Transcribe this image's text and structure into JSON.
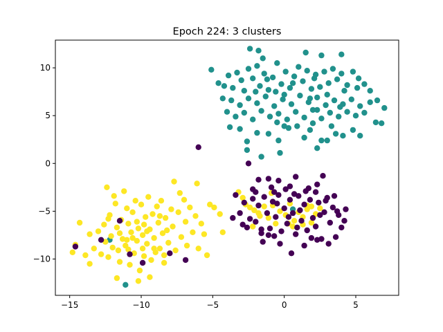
{
  "chart_data": {
    "type": "scatter",
    "title": "Epoch 224: 3 clusters",
    "xlabel": "",
    "ylabel": "",
    "xlim": [
      -16.0,
      8.0
    ],
    "ylim": [
      -13.8,
      12.9
    ],
    "xticks": [
      -15,
      -10,
      -5,
      0,
      5
    ],
    "yticks": [
      -10,
      -5,
      0,
      5,
      10
    ],
    "grid": false,
    "legend": "none",
    "series": [
      {
        "color": "#21918c",
        "points": [
          [
            -5.1,
            9.8
          ],
          [
            -4.6,
            8.4
          ],
          [
            -4.2,
            8.1
          ],
          [
            -3.9,
            9.2
          ],
          [
            -3.6,
            7.9
          ],
          [
            -3.3,
            9.5
          ],
          [
            -3.0,
            8.7
          ],
          [
            -2.8,
            7.6
          ],
          [
            -2.5,
            9.9
          ],
          [
            -2.2,
            8.9
          ],
          [
            -1.9,
            10.2
          ],
          [
            -1.7,
            8.1
          ],
          [
            -1.4,
            9.4
          ],
          [
            -1.1,
            7.7
          ],
          [
            -0.8,
            9.0
          ],
          [
            -0.5,
            10.5
          ],
          [
            -0.2,
            8.3
          ],
          [
            0.1,
            9.6
          ],
          [
            0.4,
            7.9
          ],
          [
            0.7,
            9.1
          ],
          [
            1.0,
            10.1
          ],
          [
            1.3,
            8.6
          ],
          [
            1.6,
            9.7
          ],
          [
            1.9,
            7.8
          ],
          [
            2.2,
            9.3
          ],
          [
            2.5,
            8.0
          ],
          [
            2.8,
            9.6
          ],
          [
            3.1,
            8.4
          ],
          [
            3.4,
            9.9
          ],
          [
            3.7,
            8.8
          ],
          [
            4.0,
            9.4
          ],
          [
            4.4,
            8.2
          ],
          [
            4.8,
            9.6
          ],
          [
            5.2,
            8.9
          ],
          [
            5.6,
            8.3
          ],
          [
            6.0,
            7.6
          ],
          [
            6.5,
            6.6
          ],
          [
            7.0,
            5.8
          ],
          [
            -2.4,
            12.0
          ],
          [
            -1.8,
            11.8
          ],
          [
            -1.5,
            11.0
          ],
          [
            1.5,
            11.6
          ],
          [
            2.6,
            11.3
          ],
          [
            4.0,
            11.4
          ],
          [
            -4.3,
            6.8
          ],
          [
            -4.0,
            5.4
          ],
          [
            -3.7,
            6.6
          ],
          [
            -3.4,
            4.9
          ],
          [
            -3.1,
            6.1
          ],
          [
            -2.8,
            5.3
          ],
          [
            -2.5,
            6.8
          ],
          [
            -2.2,
            4.6
          ],
          [
            -1.9,
            6.3
          ],
          [
            -1.6,
            5.5
          ],
          [
            -1.3,
            7.0
          ],
          [
            -1.0,
            4.9
          ],
          [
            -0.7,
            6.0
          ],
          [
            -0.4,
            5.2
          ],
          [
            -0.1,
            6.7
          ],
          [
            0.2,
            4.6
          ],
          [
            0.5,
            6.2
          ],
          [
            0.8,
            5.4
          ],
          [
            1.1,
            7.1
          ],
          [
            1.4,
            4.8
          ],
          [
            1.7,
            6.4
          ],
          [
            2.0,
            5.6
          ],
          [
            2.3,
            6.9
          ],
          [
            2.6,
            4.7
          ],
          [
            2.9,
            6.1
          ],
          [
            3.2,
            5.3
          ],
          [
            3.5,
            6.6
          ],
          [
            3.8,
            4.9
          ],
          [
            4.1,
            6.2
          ],
          [
            4.4,
            5.4
          ],
          [
            4.7,
            6.7
          ],
          [
            5.0,
            5.0
          ],
          [
            5.3,
            6.0
          ],
          [
            5.6,
            5.3
          ],
          [
            6.0,
            6.4
          ],
          [
            6.4,
            4.3
          ],
          [
            6.8,
            4.2
          ],
          [
            -3.8,
            3.8
          ],
          [
            -3.1,
            3.6
          ],
          [
            -2.6,
            2.3
          ],
          [
            -2.6,
            1.4
          ],
          [
            -1.9,
            3.2
          ],
          [
            -1.1,
            3.1
          ],
          [
            -0.4,
            2.4
          ],
          [
            -0.3,
            1.1
          ],
          [
            0.3,
            3.7
          ],
          [
            0.9,
            3.9
          ],
          [
            1.4,
            2.7
          ],
          [
            1.8,
            3.5
          ],
          [
            2.3,
            1.6
          ],
          [
            3.0,
            2.4
          ],
          [
            3.6,
            3.1
          ],
          [
            4.1,
            2.9
          ],
          [
            4.8,
            3.5
          ],
          [
            5.3,
            2.9
          ],
          [
            -0.5,
            4.3
          ],
          [
            0.0,
            3.9
          ],
          [
            2.0,
            4.2
          ],
          [
            -1.6,
            0.7
          ],
          [
            2.6,
            2.4
          ],
          [
            3.3,
            3.9
          ],
          [
            -0.6,
            7.5
          ],
          [
            0.6,
            8.4
          ],
          [
            1.8,
            6.8
          ],
          [
            3.0,
            7.2
          ],
          [
            -1.2,
            8.8
          ],
          [
            0.0,
            7.2
          ],
          [
            2.1,
            8.9
          ],
          [
            4.2,
            7.6
          ],
          [
            5.1,
            7.9
          ],
          [
            -2.0,
            7.5
          ],
          [
            2.3,
            5.6
          ],
          [
            3.9,
            5.9
          ],
          [
            -12.2,
            -8.0
          ],
          [
            -11.1,
            -12.7
          ],
          [
            0.6,
            -4.8
          ]
        ]
      },
      {
        "color": "#fde725",
        "points": [
          [
            -14.8,
            -9.3
          ],
          [
            -14.6,
            -8.5
          ],
          [
            -14.3,
            -6.2
          ],
          [
            -13.9,
            -9.6
          ],
          [
            -13.6,
            -7.4
          ],
          [
            -13.3,
            -8.9
          ],
          [
            -13.0,
            -7.1
          ],
          [
            -12.8,
            -9.5
          ],
          [
            -12.6,
            -6.4
          ],
          [
            -12.5,
            -8.2
          ],
          [
            -12.3,
            -9.8
          ],
          [
            -12.2,
            -5.4
          ],
          [
            -12.1,
            -7.6
          ],
          [
            -12.0,
            -8.8
          ],
          [
            -11.8,
            -4.2
          ],
          [
            -11.7,
            -6.7
          ],
          [
            -11.6,
            -9.1
          ],
          [
            -11.5,
            -10.3
          ],
          [
            -11.4,
            -5.9
          ],
          [
            -11.3,
            -7.9
          ],
          [
            -11.2,
            -2.9
          ],
          [
            -11.1,
            -8.6
          ],
          [
            -11.0,
            -4.7
          ],
          [
            -10.9,
            -6.3
          ],
          [
            -10.8,
            -10.6
          ],
          [
            -10.7,
            -7.2
          ],
          [
            -10.6,
            -5.1
          ],
          [
            -10.5,
            -9.4
          ],
          [
            -10.4,
            -3.9
          ],
          [
            -10.3,
            -8.1
          ],
          [
            -10.2,
            -6.8
          ],
          [
            -10.1,
            -11.2
          ],
          [
            -10.0,
            -4.3
          ],
          [
            -9.9,
            -7.5
          ],
          [
            -9.8,
            -9.7
          ],
          [
            -9.7,
            -5.6
          ],
          [
            -9.6,
            -8.4
          ],
          [
            -9.5,
            -3.5
          ],
          [
            -9.4,
            -6.9
          ],
          [
            -9.3,
            -10.1
          ],
          [
            -9.2,
            -5.3
          ],
          [
            -9.1,
            -7.8
          ],
          [
            -9.0,
            -9.3
          ],
          [
            -8.9,
            -4.5
          ],
          [
            -8.8,
            -6.2
          ],
          [
            -8.7,
            -8.9
          ],
          [
            -8.6,
            -3.9
          ],
          [
            -8.5,
            -7.3
          ],
          [
            -8.4,
            -10.4
          ],
          [
            -8.3,
            -5.7
          ],
          [
            -8.1,
            -8.3
          ],
          [
            -7.9,
            -4.8
          ],
          [
            -7.8,
            -6.6
          ],
          [
            -7.6,
            -9.1
          ],
          [
            -7.4,
            -5.1
          ],
          [
            -7.2,
            -7.7
          ],
          [
            -7.0,
            -3.8
          ],
          [
            -6.9,
            -6.1
          ],
          [
            -6.8,
            -8.6
          ],
          [
            -6.6,
            -4.6
          ],
          [
            -6.4,
            -7.2
          ],
          [
            -6.2,
            -5.5
          ],
          [
            -6.0,
            -8.9
          ],
          [
            -5.8,
            -6.3
          ],
          [
            -5.6,
            -7.4
          ],
          [
            -5.4,
            -9.6
          ],
          [
            -5.2,
            -4.3
          ],
          [
            -4.9,
            -4.6
          ],
          [
            -4.5,
            -5.3
          ],
          [
            -4.3,
            -7.2
          ],
          [
            -12.4,
            -2.5
          ],
          [
            -11.9,
            -3.4
          ],
          [
            -7.7,
            -1.9
          ],
          [
            -7.3,
            -3.1
          ],
          [
            -6.1,
            -2.1
          ],
          [
            -9.4,
            -11.9
          ],
          [
            -11.7,
            -12.0
          ],
          [
            -10.2,
            -12.3
          ],
          [
            -13.6,
            -10.5
          ],
          [
            -12.3,
            -5.8
          ],
          [
            -11.5,
            -7.3
          ],
          [
            -10.6,
            -7.8
          ],
          [
            -9.8,
            -6.4
          ],
          [
            -9.1,
            -8.9
          ],
          [
            -8.2,
            -7.0
          ],
          [
            -10.9,
            -9.0
          ],
          [
            -9.6,
            -7.1
          ],
          [
            -8.7,
            -5.5
          ],
          [
            -10.3,
            -6.1
          ],
          [
            -11.0,
            -8.0
          ],
          [
            -9.9,
            -8.9
          ],
          [
            -8.4,
            -9.6
          ],
          [
            -2.7,
            -4.3
          ],
          [
            -2.4,
            -4.6
          ],
          [
            -2.1,
            -4.9
          ],
          [
            -1.8,
            -5.2
          ],
          [
            -1.4,
            -4.5
          ],
          [
            -1.1,
            -5.7
          ],
          [
            -0.8,
            -4.4
          ],
          [
            -0.6,
            -6.3
          ],
          [
            -0.3,
            -5.0
          ],
          [
            0.1,
            -5.4
          ],
          [
            0.4,
            -4.2
          ],
          [
            0.7,
            -6.0
          ],
          [
            1.0,
            -5.1
          ],
          [
            1.3,
            -5.6
          ],
          [
            1.6,
            -4.4
          ],
          [
            1.9,
            -6.2
          ],
          [
            2.2,
            -5.3
          ],
          [
            2.5,
            -4.7
          ],
          [
            -2.2,
            -6.6
          ],
          [
            0.6,
            -6.6
          ],
          [
            1.3,
            -6.4
          ],
          [
            -3.2,
            -3.0
          ],
          [
            -0.9,
            -3.1
          ],
          [
            1.6,
            -4.8
          ],
          [
            -2.9,
            -3.6
          ],
          [
            0.3,
            -6.3
          ],
          [
            1.9,
            -4.5
          ],
          [
            -1.7,
            -5.5
          ]
        ]
      },
      {
        "color": "#440154",
        "points": [
          [
            -6.0,
            1.7
          ],
          [
            -12.8,
            -8.0
          ],
          [
            -14.6,
            -8.7
          ],
          [
            -11.5,
            -6.0
          ],
          [
            -10.8,
            -9.5
          ],
          [
            -9.9,
            -10.4
          ],
          [
            -8.0,
            -9.4
          ],
          [
            -6.9,
            -10.1
          ],
          [
            -2.5,
            0.0
          ],
          [
            -2.2,
            -2.7
          ],
          [
            -1.8,
            -1.7
          ],
          [
            -1.1,
            -1.6
          ],
          [
            -0.7,
            -3.0
          ],
          [
            -0.4,
            -1.8
          ],
          [
            0.4,
            -2.4
          ],
          [
            0.8,
            -1.4
          ],
          [
            1.5,
            -2.9
          ],
          [
            2.3,
            -2.2
          ],
          [
            2.7,
            -1.3
          ],
          [
            -3.4,
            -3.3
          ],
          [
            -3.1,
            -5.2
          ],
          [
            -2.8,
            -4.1
          ],
          [
            -2.6,
            -6.7
          ],
          [
            -2.4,
            -5.8
          ],
          [
            -2.2,
            -3.7
          ],
          [
            -2.0,
            -6.1
          ],
          [
            -1.8,
            -4.4
          ],
          [
            -1.6,
            -7.3
          ],
          [
            -1.4,
            -3.5
          ],
          [
            -1.2,
            -5.2
          ],
          [
            -1.0,
            -6.8
          ],
          [
            -0.8,
            -4.0
          ],
          [
            -0.6,
            -5.6
          ],
          [
            -0.4,
            -3.3
          ],
          [
            -0.2,
            -7.1
          ],
          [
            0.0,
            -4.7
          ],
          [
            0.2,
            -6.3
          ],
          [
            0.4,
            -3.8
          ],
          [
            0.6,
            -5.2
          ],
          [
            0.8,
            -7.4
          ],
          [
            1.0,
            -3.4
          ],
          [
            1.2,
            -6.0
          ],
          [
            1.4,
            -4.3
          ],
          [
            1.6,
            -7.0
          ],
          [
            1.8,
            -3.8
          ],
          [
            2.0,
            -5.7
          ],
          [
            2.2,
            -6.6
          ],
          [
            2.4,
            -4.1
          ],
          [
            2.6,
            -7.9
          ],
          [
            2.8,
            -5.1
          ],
          [
            3.0,
            -3.6
          ],
          [
            3.2,
            -6.2
          ],
          [
            3.4,
            -4.6
          ],
          [
            3.6,
            -7.7
          ],
          [
            3.8,
            -5.4
          ],
          [
            4.0,
            -6.7
          ],
          [
            4.3,
            -4.8
          ],
          [
            -3.6,
            -5.7
          ],
          [
            -1.5,
            -8.2
          ],
          [
            -0.3,
            -8.4
          ],
          [
            0.5,
            -9.4
          ],
          [
            1.4,
            -8.6
          ],
          [
            2.3,
            -8.0
          ],
          [
            3.1,
            -8.4
          ],
          [
            -0.9,
            -2.5
          ],
          [
            0.1,
            -2.7
          ],
          [
            1.7,
            -2.6
          ],
          [
            2.9,
            -3.9
          ],
          [
            -2.0,
            -3.0
          ],
          [
            0.9,
            -6.7
          ],
          [
            -1.1,
            -7.5
          ],
          [
            2.5,
            -5.4
          ],
          [
            1.1,
            -4.9
          ],
          [
            -0.5,
            -4.2
          ],
          [
            0.3,
            -5.6
          ],
          [
            3.5,
            -3.4
          ],
          [
            -2.9,
            -6.4
          ],
          [
            1.9,
            -7.8
          ],
          [
            0.7,
            -3.2
          ],
          [
            4.2,
            -6.0
          ],
          [
            -1.6,
            -6.9
          ],
          [
            2.2,
            -3.0
          ],
          [
            3.7,
            -5.0
          ],
          [
            -0.7,
            -7.6
          ]
        ]
      }
    ]
  }
}
